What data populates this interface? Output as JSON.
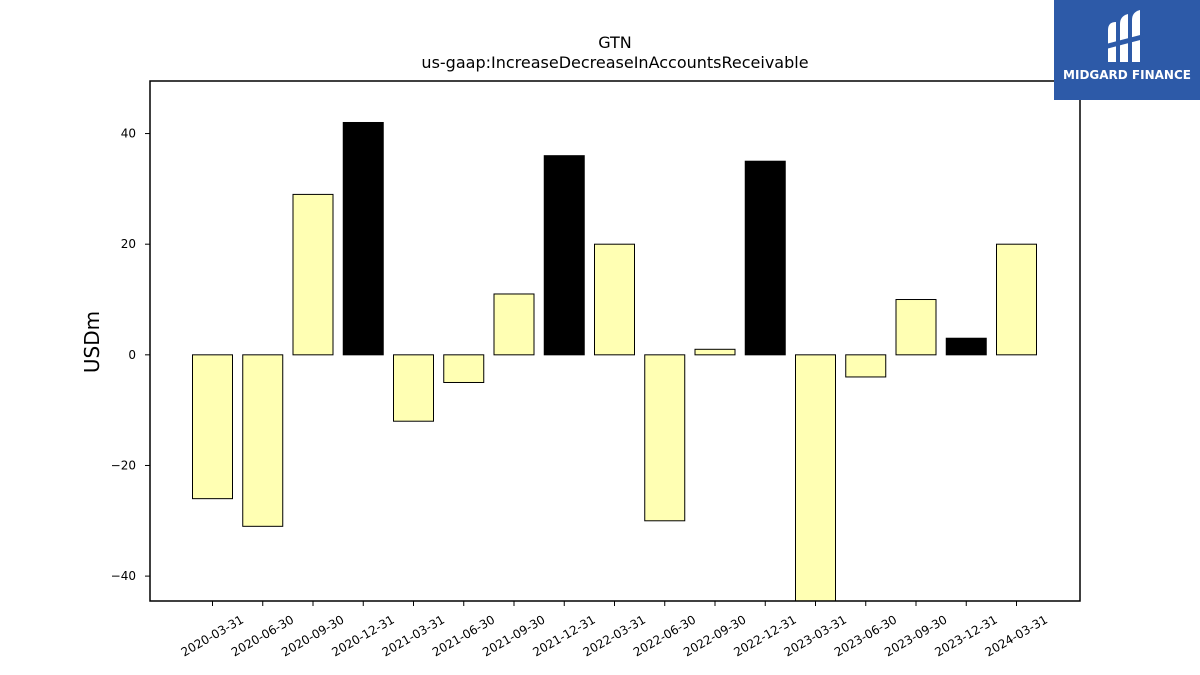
{
  "chart_data": {
    "type": "bar",
    "title": "GTN",
    "subtitle": "us-gaap:IncreaseDecreaseInAccountsReceivable",
    "ylabel": "USDm",
    "xlabel": "",
    "ylim": [
      -44.5,
      49.5
    ],
    "yticks": [
      -40,
      -20,
      0,
      20,
      40
    ],
    "ytick_labels": [
      "−40",
      "−20",
      "0",
      "20",
      "40"
    ],
    "grid": false,
    "categories": [
      "2020-03-31",
      "2020-06-30",
      "2020-09-30",
      "2020-12-31",
      "2021-03-31",
      "2021-06-30",
      "2021-09-30",
      "2021-12-31",
      "2022-03-31",
      "2022-06-30",
      "2022-09-30",
      "2022-12-31",
      "2023-03-31",
      "2023-06-30",
      "2023-09-30",
      "2023-12-31",
      "2024-03-31"
    ],
    "values": [
      -26,
      -31,
      29,
      42,
      -12,
      -5,
      11,
      36,
      20,
      -30,
      1,
      35,
      -46,
      -4,
      10,
      3,
      20
    ],
    "bar_colors": [
      "#ffffb3",
      "#ffffb3",
      "#ffffb3",
      "#000000",
      "#ffffb3",
      "#ffffb3",
      "#ffffb3",
      "#000000",
      "#ffffb3",
      "#ffffb3",
      "#ffffb3",
      "#000000",
      "#ffffb3",
      "#ffffb3",
      "#ffffb3",
      "#000000",
      "#ffffb3"
    ]
  },
  "logo": {
    "text": "MIDGARD FINANCE",
    "icon": "midgard-logo-icon",
    "background": "#2d5aa8"
  }
}
